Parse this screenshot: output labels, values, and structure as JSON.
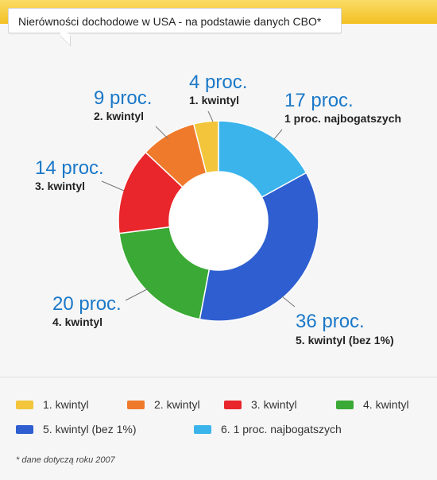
{
  "title": "Nierówności dochodowe w USA - na podstawie danych CBO*",
  "chart_data": {
    "type": "pie",
    "categories": [
      "1. kwintyl",
      "2. kwintyl",
      "3. kwintyl",
      "4. kwintyl",
      "5. kwintyl (bez 1%)",
      "1 proc. najbogatszych"
    ],
    "values": [
      4,
      9,
      14,
      20,
      36,
      17
    ],
    "value_labels": [
      "4 proc.",
      "9 proc.",
      "14 proc.",
      "20 proc.",
      "36 proc.",
      "17 proc."
    ],
    "slice_labels": [
      "1. kwintyl",
      "2. kwintyl",
      "3. kwintyl",
      "4. kwintyl",
      "5. kwintyl (bez 1%)",
      "1 proc. najbogatszych"
    ],
    "colors": [
      "#f2c53a",
      "#f07a2c",
      "#e8262b",
      "#3aa935",
      "#2e5ecf",
      "#3bb4ec"
    ],
    "legend": [
      "1. kwintyl",
      "2. kwintyl",
      "3. kwintyl",
      "4. kwintyl",
      "5. kwintyl (bez 1%)",
      "6. 1 proc. najbogatszych"
    ],
    "legend_position": "bottom",
    "donut": true
  },
  "footnote": "* dane dotyczą roku 2007"
}
